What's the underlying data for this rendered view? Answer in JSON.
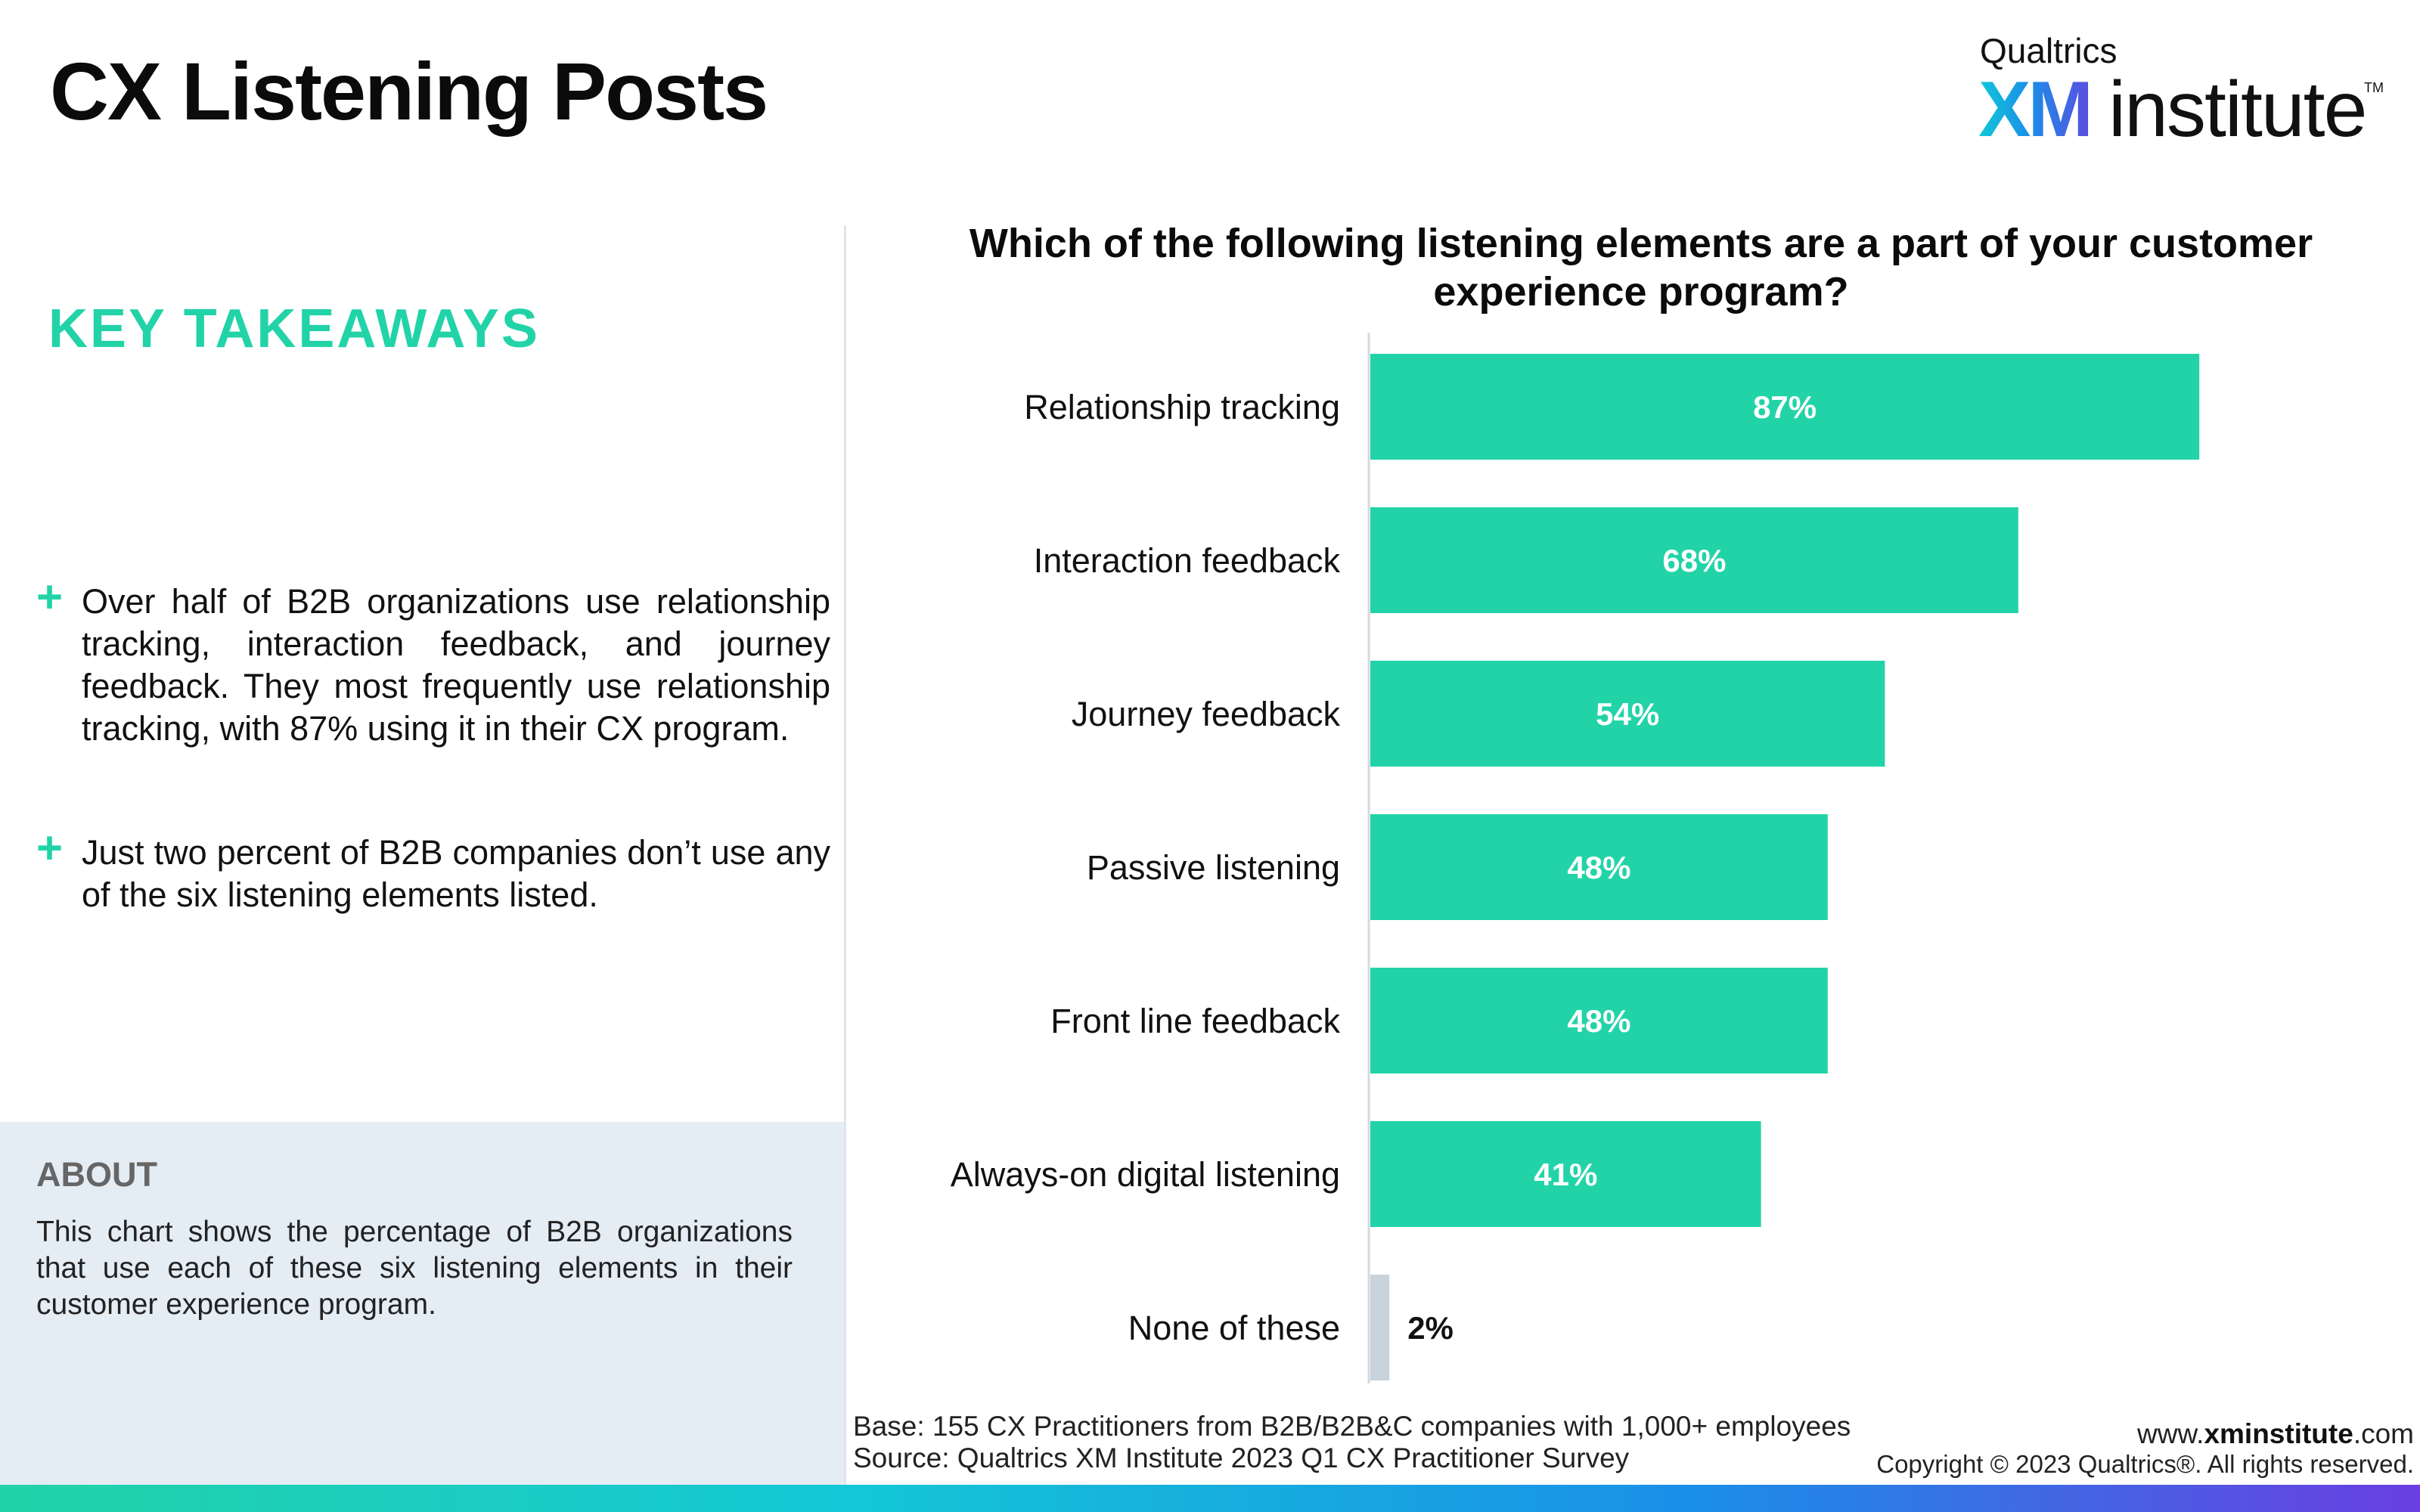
{
  "header": {
    "title": "CX Listening Posts",
    "logo": {
      "brand": "Qualtrics",
      "xm": "XM",
      "institute": "institute",
      "tm": "TM"
    }
  },
  "takeaways": {
    "heading": "KEY TAKEAWAYS",
    "items": [
      "Over half of B2B organizations use relationship tracking, interaction feedback, and journey feedback. They most frequently use relationship tracking, with 87% using it in their CX program.",
      "Just two percent of B2B companies don’t use any of the six listening elements listed."
    ],
    "plus_icon": "plus-icon"
  },
  "about": {
    "heading": "ABOUT",
    "text": "This chart shows the percentage of B2B organizations that use each of these six listening elements in their customer experience program."
  },
  "colors": {
    "accent": "#22d3a8",
    "none_bar": "#c9d3dc"
  },
  "chart_data": {
    "type": "bar",
    "orientation": "horizontal",
    "title": "Which of the following listening elements are a part of your customer experience program?",
    "categories": [
      "Relationship tracking",
      "Interaction feedback",
      "Journey feedback",
      "Passive listening",
      "Front line feedback",
      "Always-on digital listening",
      "None of these"
    ],
    "values": [
      87,
      68,
      54,
      48,
      48,
      41,
      2
    ],
    "labels": [
      "87%",
      "68%",
      "54%",
      "48%",
      "48%",
      "41%",
      "2%"
    ],
    "xlim": [
      0,
      100
    ],
    "grid": false
  },
  "footer": {
    "base": "Base: 155 CX Practitioners from B2B/B2B&C companies with 1,000+ employees",
    "source": "Source: Qualtrics XM Institute 2023 Q1 CX Practitioner Survey",
    "url_prefix": "www.",
    "url_bold": "xminstitute",
    "url_suffix": ".com",
    "copyright": "Copyright © 2023 Qualtrics®. All rights reserved."
  }
}
